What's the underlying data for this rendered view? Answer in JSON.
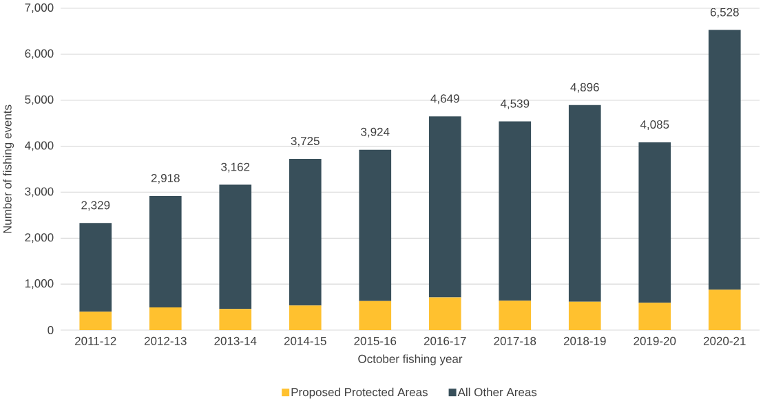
{
  "chart_data": {
    "type": "bar",
    "stacked": true,
    "xlabel": "October fishing year",
    "ylabel": "Number of fishing events",
    "categories": [
      "2011-12",
      "2012-13",
      "2013-14",
      "2014-15",
      "2015-16",
      "2016-17",
      "2017-18",
      "2018-19",
      "2019-20",
      "2020-21"
    ],
    "series": [
      {
        "name": "Proposed Protected Areas",
        "color": "#ffc12f",
        "values": [
          400,
          495,
          460,
          535,
          630,
          710,
          640,
          615,
          595,
          880
        ]
      },
      {
        "name": "All Other Areas",
        "color": "#384f5a",
        "values": [
          1929,
          2423,
          2702,
          3190,
          3294,
          3939,
          3899,
          4281,
          3490,
          5648
        ]
      }
    ],
    "totals": [
      "2,329",
      "2,918",
      "3,162",
      "3,725",
      "3,924",
      "4,649",
      "4,539",
      "4,896",
      "4,085",
      "6,528"
    ],
    "ylim": [
      0,
      7000
    ],
    "yticks": [
      0,
      {
        "value": 1000,
        "label": "1,000"
      },
      {
        "value": 2000,
        "label": "2,000"
      },
      {
        "value": 3000,
        "label": "3,000"
      },
      {
        "value": 4000,
        "label": "4,000"
      },
      {
        "value": 5000,
        "label": "5,000"
      },
      {
        "value": 6000,
        "label": "6,000"
      },
      {
        "value": 7000,
        "label": "7,000"
      }
    ],
    "grid": "y",
    "legend": "bottom"
  }
}
